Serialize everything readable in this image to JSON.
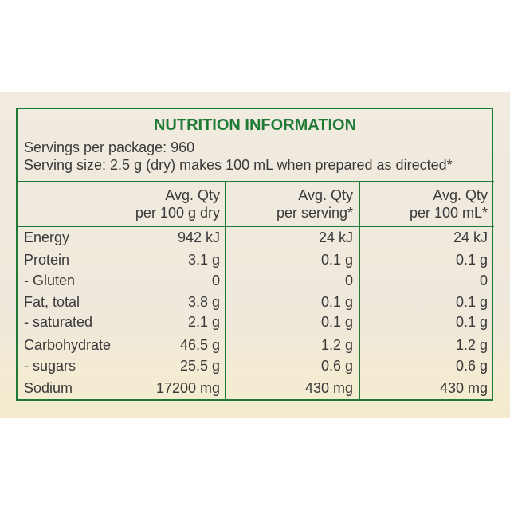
{
  "header": {
    "title": "NUTRITION INFORMATION",
    "servings_per_package": "Servings per package: 960",
    "serving_size": "Serving size: 2.5 g (dry) makes 100 mL when prepared as directed*"
  },
  "table": {
    "columns": [
      [
        "Avg. Qty",
        "per 100 g dry"
      ],
      [
        "Avg. Qty",
        "per serving*"
      ],
      [
        "Avg. Qty",
        "per 100 mL*"
      ]
    ],
    "rows": [
      [
        "Energy",
        "942 kJ",
        "24 kJ",
        "24 kJ"
      ],
      [
        "Protein",
        "3.1 g",
        "0.1 g",
        "0.1 g"
      ],
      [
        "- Gluten",
        "0",
        "0",
        "0"
      ],
      [
        "Fat, total",
        "3.8 g",
        "0.1 g",
        "0.1 g"
      ],
      [
        "- saturated",
        "2.1 g",
        "0.1 g",
        "0.1 g"
      ],
      [
        "Carbohydrate",
        "46.5 g",
        "1.2 g",
        "1.2 g"
      ],
      [
        "- sugars",
        "25.5 g",
        "0.6 g",
        "0.6 g"
      ],
      [
        "Sodium",
        "17200 mg",
        "430 mg",
        "430 mg"
      ]
    ]
  }
}
